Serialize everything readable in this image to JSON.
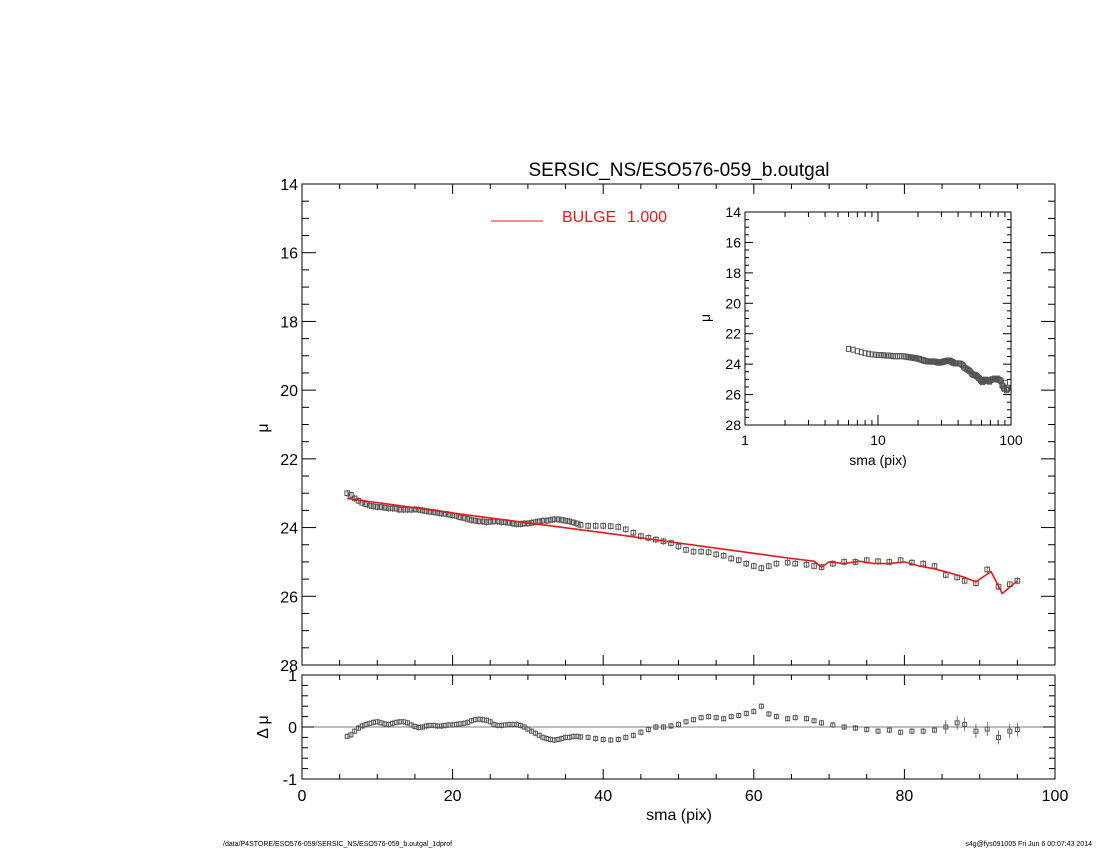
{
  "footer": {
    "path": "/data/P4STORE/ESO576-059/SERSIC_NS/ESO576-059_b.outgal_1dprof",
    "stamp": "s4g@fys091005  Fri Jun  6 00:07:43 2014"
  },
  "colors": {
    "model": "#e41a1c",
    "data": "#555555",
    "axis": "#000000"
  },
  "chart_data": [
    {
      "id": "main",
      "type": "scatter",
      "title": "SERSIC_NS/ESO576-059_b.outgal",
      "xlabel": "",
      "ylabel": "μ",
      "xlim": [
        0,
        100
      ],
      "ylim": [
        28,
        14
      ],
      "xticks": [
        0,
        20,
        40,
        60,
        80,
        100
      ],
      "yticks": [
        14,
        16,
        18,
        20,
        22,
        24,
        26,
        28
      ],
      "legend": {
        "label": "BULGE",
        "value": "1.000",
        "placement": "top-center"
      },
      "series": [
        {
          "role": "data",
          "x": [
            6.0,
            6.5,
            7.0,
            7.5,
            8.0,
            8.5,
            9.0,
            9.5,
            10.0,
            10.5,
            11.0,
            11.5,
            12.0,
            12.5,
            13.0,
            13.5,
            14.0,
            14.5,
            15.0,
            15.5,
            16.0,
            16.5,
            17.0,
            17.5,
            18.0,
            18.5,
            19.0,
            19.5,
            20.0,
            20.5,
            21.0,
            21.5,
            22.0,
            22.5,
            23.0,
            23.5,
            24.0,
            24.5,
            25.0,
            25.5,
            26.0,
            26.5,
            27.0,
            27.5,
            28.0,
            28.5,
            29.0,
            29.5,
            30.0,
            30.5,
            31.0,
            31.5,
            32.0,
            32.5,
            33.0,
            33.5,
            34.0,
            34.5,
            35.0,
            35.5,
            36.0,
            36.5,
            37.0,
            38.0,
            39.0,
            40.0,
            41.0,
            42.0,
            43.0,
            44.0,
            45.0,
            46.0,
            47.0,
            48.0,
            49.0,
            50.0,
            51.0,
            52.0,
            53.0,
            54.0,
            55.0,
            56.0,
            57.0,
            58.0,
            59.0,
            60.0,
            61.0,
            62.0,
            63.0,
            64.5,
            65.5,
            67.0,
            68.0,
            69.0,
            70.5,
            72.0,
            73.5,
            75.0,
            76.5,
            78.0,
            79.5,
            81.0,
            82.5,
            84.0,
            85.5,
            87.0,
            88.0,
            89.5,
            91.0,
            92.5,
            94.0,
            95.0
          ],
          "y": [
            23.0,
            23.05,
            23.15,
            23.22,
            23.28,
            23.32,
            23.36,
            23.38,
            23.4,
            23.4,
            23.42,
            23.44,
            23.44,
            23.45,
            23.48,
            23.48,
            23.48,
            23.48,
            23.47,
            23.48,
            23.5,
            23.52,
            23.54,
            23.55,
            23.57,
            23.59,
            23.6,
            23.62,
            23.64,
            23.66,
            23.7,
            23.72,
            23.75,
            23.78,
            23.8,
            23.82,
            23.82,
            23.84,
            23.83,
            23.82,
            23.82,
            23.84,
            23.84,
            23.86,
            23.88,
            23.9,
            23.9,
            23.88,
            23.88,
            23.86,
            23.84,
            23.82,
            23.8,
            23.8,
            23.78,
            23.76,
            23.76,
            23.78,
            23.8,
            23.82,
            23.85,
            23.88,
            23.92,
            23.95,
            23.95,
            23.95,
            23.96,
            23.98,
            24.05,
            24.15,
            24.25,
            24.3,
            24.35,
            24.4,
            24.45,
            24.55,
            24.65,
            24.7,
            24.7,
            24.72,
            24.78,
            24.82,
            24.9,
            24.95,
            25.05,
            25.12,
            25.18,
            25.12,
            25.05,
            25.02,
            25.05,
            25.08,
            25.12,
            25.15,
            25.05,
            25.0,
            25.0,
            24.95,
            24.98,
            25.0,
            24.95,
            25.02,
            25.05,
            25.12,
            25.38,
            25.45,
            25.55,
            25.62,
            25.22,
            25.72,
            25.65,
            25.55
          ]
        },
        {
          "role": "model",
          "name": "BULGE",
          "x": [
            6.0,
            20.0,
            40.0,
            60.0,
            65.0,
            68.0,
            69.0,
            70.0,
            72.0,
            74.0,
            76.0,
            78.0,
            80.0,
            82.0,
            84.0,
            86.0,
            88.0,
            89.5,
            91.5,
            93.0,
            95.0
          ],
          "y": [
            23.15,
            23.58,
            24.15,
            24.75,
            24.9,
            24.98,
            25.15,
            25.0,
            25.05,
            24.98,
            25.05,
            25.05,
            25.0,
            25.12,
            25.2,
            25.32,
            25.45,
            25.58,
            25.28,
            25.92,
            25.55
          ]
        }
      ]
    },
    {
      "id": "inset",
      "type": "scatter",
      "xscale": "log",
      "xlabel": "sma (pix)",
      "ylabel": "μ",
      "xlim": [
        1,
        100
      ],
      "ylim": [
        28,
        14
      ],
      "xticks": [
        1,
        10,
        100
      ],
      "yticks": [
        14,
        16,
        18,
        20,
        22,
        24,
        26,
        28
      ]
    },
    {
      "id": "residual",
      "type": "scatter",
      "xlabel": "sma (pix)",
      "ylabel": "Δ μ",
      "xlim": [
        0,
        100
      ],
      "ylim": [
        -1,
        1
      ],
      "xticks": [
        0,
        20,
        40,
        60,
        80,
        100
      ],
      "yticks": [
        -1,
        0,
        1
      ],
      "zero_line": true,
      "series": [
        {
          "role": "residual",
          "x": [
            6.0,
            6.5,
            7.0,
            7.5,
            8.0,
            8.5,
            9.0,
            9.5,
            10.0,
            10.5,
            11.0,
            11.5,
            12.0,
            12.5,
            13.0,
            13.5,
            14.0,
            14.5,
            15.0,
            15.5,
            16.0,
            16.5,
            17.0,
            17.5,
            18.0,
            18.5,
            19.0,
            19.5,
            20.0,
            20.5,
            21.0,
            21.5,
            22.0,
            22.5,
            23.0,
            23.5,
            24.0,
            24.5,
            25.0,
            25.5,
            26.0,
            26.5,
            27.0,
            27.5,
            28.0,
            28.5,
            29.0,
            29.5,
            30.0,
            30.5,
            31.0,
            31.5,
            32.0,
            32.5,
            33.0,
            33.5,
            34.0,
            34.5,
            35.0,
            35.5,
            36.0,
            36.5,
            37.0,
            38.0,
            39.0,
            40.0,
            41.0,
            42.0,
            43.0,
            44.0,
            45.0,
            46.0,
            47.0,
            48.0,
            49.0,
            50.0,
            51.0,
            52.0,
            53.0,
            54.0,
            55.0,
            56.0,
            57.0,
            58.0,
            59.0,
            60.0,
            61.0,
            62.0,
            63.0,
            64.5,
            65.5,
            67.0,
            68.0,
            69.0,
            70.5,
            72.0,
            73.5,
            75.0,
            76.5,
            78.0,
            79.5,
            81.0,
            82.5,
            84.0,
            85.5,
            87.0,
            88.0,
            89.5,
            91.0,
            92.5,
            94.0,
            95.0
          ],
          "y": [
            -0.18,
            -0.15,
            -0.08,
            -0.02,
            0.02,
            0.05,
            0.07,
            0.09,
            0.1,
            0.08,
            0.06,
            0.05,
            0.07,
            0.09,
            0.1,
            0.1,
            0.08,
            0.04,
            0.01,
            -0.01,
            0.0,
            0.02,
            0.03,
            0.03,
            0.02,
            0.02,
            0.03,
            0.04,
            0.04,
            0.05,
            0.06,
            0.07,
            0.09,
            0.12,
            0.14,
            0.15,
            0.14,
            0.13,
            0.1,
            0.05,
            0.03,
            0.03,
            0.04,
            0.05,
            0.05,
            0.05,
            0.03,
            0.0,
            -0.04,
            -0.08,
            -0.12,
            -0.16,
            -0.2,
            -0.22,
            -0.24,
            -0.25,
            -0.24,
            -0.22,
            -0.2,
            -0.2,
            -0.18,
            -0.18,
            -0.19,
            -0.2,
            -0.22,
            -0.24,
            -0.25,
            -0.24,
            -0.2,
            -0.16,
            -0.1,
            -0.05,
            0.0,
            0.0,
            0.02,
            0.05,
            0.1,
            0.14,
            0.18,
            0.2,
            0.18,
            0.16,
            0.2,
            0.22,
            0.26,
            0.3,
            0.4,
            0.25,
            0.2,
            0.16,
            0.18,
            0.16,
            0.12,
            0.08,
            0.04,
            0.0,
            -0.02,
            -0.05,
            -0.08,
            -0.06,
            -0.1,
            -0.08,
            -0.08,
            -0.06,
            0.0,
            0.08,
            0.05,
            -0.08,
            -0.04,
            -0.2,
            -0.08,
            -0.05
          ]
        }
      ]
    }
  ]
}
